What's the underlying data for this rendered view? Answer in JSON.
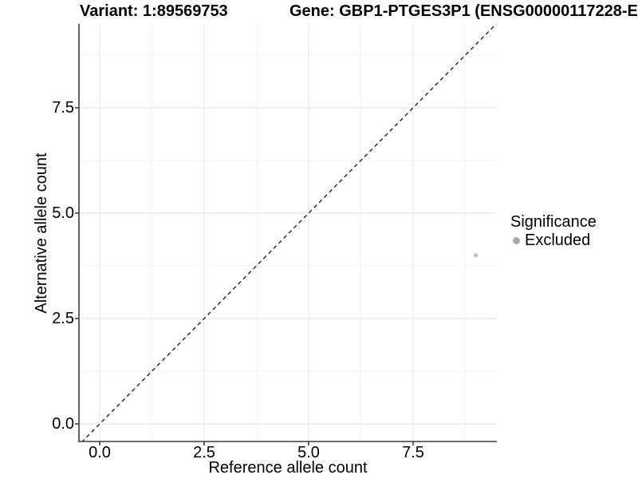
{
  "titles": {
    "left": "Variant: 1:89569753",
    "right": "Gene: GBP1-PTGES3P1 (ENSG00000117228-E"
  },
  "chart_data": {
    "type": "scatter",
    "xlabel": "Reference allele count",
    "ylabel": "Alternative allele count",
    "xlim": [
      -0.5,
      9.5
    ],
    "ylim": [
      -0.45,
      9.5
    ],
    "x_ticks": {
      "values": [
        0,
        2.5,
        5,
        7.5
      ],
      "labels": [
        "0.0",
        "2.5",
        "5.0",
        "7.5"
      ]
    },
    "y_ticks": {
      "values": [
        0,
        2.5,
        5,
        7.5
      ],
      "labels": [
        "0.0",
        "2.5",
        "5.0",
        "7.5"
      ]
    },
    "x_minor_ticks": [
      1.25,
      3.75,
      6.25,
      8.75
    ],
    "y_minor_ticks": [
      1.25,
      3.75,
      6.25,
      8.75
    ],
    "grid": "major+minor",
    "reference_line": {
      "equation": "y = x",
      "style": "dashed",
      "color": "#222222"
    },
    "series": [
      {
        "name": "Excluded",
        "color": "#bcbcbc",
        "points": [
          {
            "x": 9,
            "y": 4
          }
        ]
      }
    ],
    "legend": {
      "title": "Significance",
      "position": "right",
      "entries": [
        {
          "label": "Excluded",
          "color": "#a9a9a9"
        }
      ]
    }
  },
  "colors": {
    "axis": "#3d3d3d",
    "grid_major": "#e8e8e8",
    "grid_minor": "#f2f2f2",
    "background": "#ffffff"
  }
}
